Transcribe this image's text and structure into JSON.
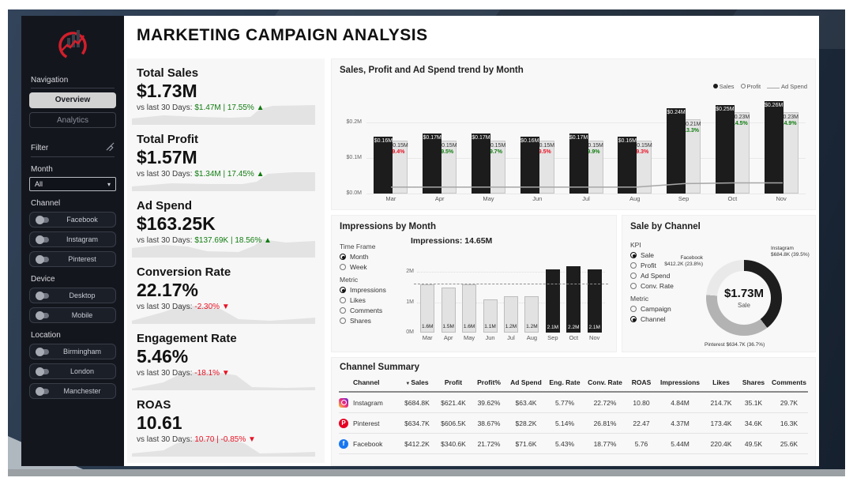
{
  "title": "MARKETING CAMPAIGN ANALYSIS",
  "colors": {
    "green": "#107C10",
    "red": "#E81123",
    "bar_dark": "#1c1c1c",
    "bar_light": "#e4e4e4",
    "logo_red": "#d21f2b"
  },
  "sidebar": {
    "nav_label": "Navigation",
    "nav_items": [
      {
        "label": "Overview",
        "active": true
      },
      {
        "label": "Analytics",
        "active": false
      }
    ],
    "filter_label": "Filter",
    "month_label": "Month",
    "month_value": "All",
    "groups": [
      {
        "label": "Channel",
        "items": [
          "Facebook",
          "Instagram",
          "Pinterest"
        ]
      },
      {
        "label": "Device",
        "items": [
          "Desktop",
          "Mobile"
        ]
      },
      {
        "label": "Location",
        "items": [
          "Birmingham",
          "London",
          "Manchester"
        ]
      }
    ]
  },
  "kpi_compare_prefix": "vs last 30 Days:",
  "kpis": [
    {
      "title": "Total Sales",
      "value": "$1.73M",
      "delta": "$1.47M | 17.55%",
      "direction": "up"
    },
    {
      "title": "Total Profit",
      "value": "$1.57M",
      "delta": "$1.34M | 17.45%",
      "direction": "up"
    },
    {
      "title": "Ad Spend",
      "value": "$163.25K",
      "delta": "$137.69K | 18.56%",
      "direction": "up"
    },
    {
      "title": "Conversion Rate",
      "value": "22.17%",
      "delta": "-2.30%",
      "direction": "down"
    },
    {
      "title": "Engagement Rate",
      "value": "5.46%",
      "delta": "-18.1%",
      "direction": "down"
    },
    {
      "title": "ROAS",
      "value": "10.61",
      "delta": "10.70 | -0.85%",
      "direction": "down"
    }
  ],
  "chart_data": [
    {
      "name": "trend",
      "type": "bar",
      "title": "Sales, Profit and Ad Spend trend by Month",
      "legend": [
        "Sales",
        "Profit",
        "Ad Spend"
      ],
      "categories": [
        "Mar",
        "Apr",
        "May",
        "Jun",
        "Jul",
        "Aug",
        "Sep",
        "Oct",
        "Nov"
      ],
      "series": [
        {
          "name": "Sales",
          "values_musd": [
            0.16,
            0.17,
            0.17,
            0.16,
            0.17,
            0.16,
            0.24,
            0.25,
            0.26
          ],
          "labels": [
            "$0.16M",
            "$0.17M",
            "$0.17M",
            "$0.16M",
            "$0.17M",
            "$0.16M",
            "$0.24M",
            "$0.25M",
            "$0.26M"
          ]
        },
        {
          "name": "Profit",
          "values_musd": [
            0.15,
            0.15,
            0.15,
            0.15,
            0.15,
            0.15,
            0.21,
            0.23,
            0.23
          ],
          "labels": [
            "$0.15M",
            "$0.15M",
            "$0.15M",
            "$0.15M",
            "$0.15M",
            "$0.15M",
            "$0.21M",
            "$0.23M",
            "$0.23M"
          ],
          "growth_pct": [
            "9.4%",
            "9.5%",
            "9.7%",
            "9.5%",
            "9.9%",
            "9.3%",
            "13.3%",
            "14.5%",
            "14.9%"
          ],
          "growth_dir": [
            "down",
            "up",
            "up",
            "down",
            "up",
            "down",
            "up",
            "up",
            "up"
          ]
        },
        {
          "name": "Ad Spend",
          "values_musd": [
            0.018,
            0.018,
            0.018,
            0.018,
            0.018,
            0.018,
            0.028,
            0.03,
            0.03
          ]
        }
      ],
      "y_ticks": [
        {
          "label": "$0.2M",
          "value": 0.2
        },
        {
          "label": "$0.1M",
          "value": 0.1
        },
        {
          "label": "$0.0M",
          "value": 0
        }
      ],
      "ylim": [
        0,
        0.28
      ]
    },
    {
      "name": "impressions",
      "type": "bar",
      "title": "Impressions by Month",
      "header": "Impressions: 14.65M",
      "controls": {
        "time_frame": {
          "label": "Time Frame",
          "options": [
            "Month",
            "Week"
          ],
          "selected": "Month"
        },
        "metric": {
          "label": "Metric",
          "options": [
            "Impressions",
            "Likes",
            "Comments",
            "Shares"
          ],
          "selected": "Impressions"
        }
      },
      "categories": [
        "Mar",
        "Apr",
        "May",
        "Jun",
        "Jul",
        "Aug",
        "Sep",
        "Oct",
        "Nov"
      ],
      "values_m": [
        1.6,
        1.5,
        1.6,
        1.1,
        1.2,
        1.2,
        2.1,
        2.2,
        2.1
      ],
      "labels": [
        "1.6M",
        "1.5M",
        "1.6M",
        "1.1M",
        "1.2M",
        "1.2M",
        "2.1M",
        "2.2M",
        "2.1M"
      ],
      "highlighted": [
        false,
        false,
        false,
        false,
        false,
        false,
        true,
        true,
        true
      ],
      "average_line_m": 1.63,
      "y_ticks": [
        {
          "label": "2M",
          "value": 2
        },
        {
          "label": "1M",
          "value": 1
        },
        {
          "label": "0M",
          "value": 0
        }
      ],
      "ylim": [
        0,
        2.35
      ]
    },
    {
      "name": "sale_by_channel",
      "type": "pie",
      "title": "Sale by Channel",
      "controls": {
        "kpi": {
          "label": "KPI",
          "options": [
            "Sale",
            "Profit",
            "Ad Spend",
            "Conv. Rate"
          ],
          "selected": "Sale"
        },
        "metric": {
          "label": "Metric",
          "options": [
            "Campaign",
            "Channel"
          ],
          "selected": "Channel"
        }
      },
      "center_value": "$1.73M",
      "center_label": "Sale",
      "slices": [
        {
          "name": "Instagram",
          "amount": "$684.8K (39.5%)",
          "pct": 39.5,
          "color": "#1e1e1e"
        },
        {
          "name": "Pinterest",
          "amount": "$634.7K (36.7%)",
          "pct": 36.7,
          "color": "#b3b3b3"
        },
        {
          "name": "Facebook",
          "amount": "$412.2K (23.8%)",
          "pct": 23.8,
          "color": "#e9e9e9"
        }
      ]
    },
    {
      "name": "channel_summary",
      "type": "table",
      "title": "Channel Summary",
      "columns": [
        "Channel",
        "Sales",
        "Profit",
        "Profit%",
        "Ad Spend",
        "Eng. Rate",
        "Conv. Rate",
        "ROAS",
        "Impressions",
        "Likes",
        "Shares",
        "Comments"
      ],
      "sorted_by": "Sales",
      "rows": [
        {
          "icon": "instagram",
          "channel": "Instagram",
          "values": [
            "$684.8K",
            "$621.4K",
            "39.62%",
            "$63.4K",
            "5.77%",
            "22.72%",
            "10.80",
            "4.84M",
            "214.7K",
            "35.1K",
            "29.7K"
          ]
        },
        {
          "icon": "pinterest",
          "channel": "Pinterest",
          "values": [
            "$634.7K",
            "$606.5K",
            "38.67%",
            "$28.2K",
            "5.14%",
            "26.81%",
            "22.47",
            "4.37M",
            "173.4K",
            "34.6K",
            "16.3K"
          ]
        },
        {
          "icon": "facebook",
          "channel": "Facebook",
          "values": [
            "$412.2K",
            "$340.6K",
            "21.72%",
            "$71.6K",
            "5.43%",
            "18.77%",
            "5.76",
            "5.44M",
            "220.4K",
            "49.5K",
            "25.6K"
          ]
        }
      ]
    }
  ]
}
